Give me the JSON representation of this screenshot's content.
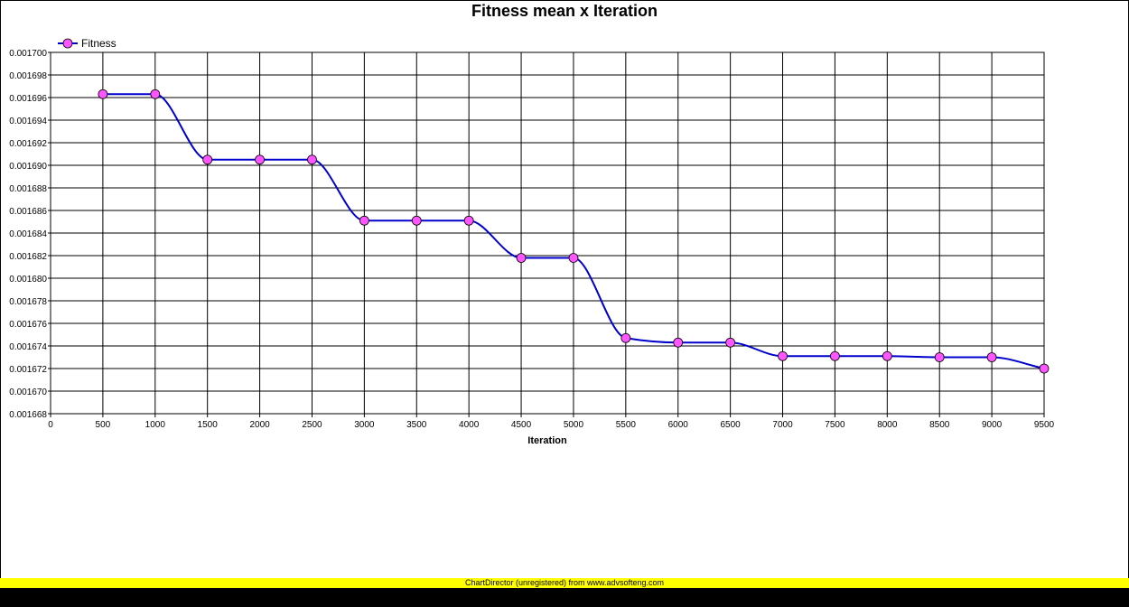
{
  "chart_data": {
    "type": "line",
    "title": "Fitness mean x Iteration",
    "xlabel": "Iteration",
    "ylabel": "",
    "xlim": [
      0,
      9500
    ],
    "ylim": [
      0.001668,
      0.0017
    ],
    "x_ticks": [
      "0",
      "500",
      "1000",
      "1500",
      "2000",
      "2500",
      "3000",
      "3500",
      "4000",
      "4500",
      "5000",
      "5500",
      "6000",
      "6500",
      "7000",
      "7500",
      "8000",
      "8500",
      "9000",
      "9500"
    ],
    "y_ticks": [
      "0.001668",
      "0.001670",
      "0.001672",
      "0.001674",
      "0.001676",
      "0.001678",
      "0.001680",
      "0.001682",
      "0.001684",
      "0.001686",
      "0.001688",
      "0.001690",
      "0.001692",
      "0.001694",
      "0.001696",
      "0.001698",
      "0.001700"
    ],
    "grid": true,
    "legend_position": "top-left",
    "series": [
      {
        "name": "Fitness",
        "line_color": "#0000cc",
        "marker_color": "#ff55ff",
        "x": [
          500,
          1000,
          1500,
          2000,
          2500,
          3000,
          3500,
          4000,
          4500,
          5000,
          5500,
          6000,
          6500,
          7000,
          7500,
          8000,
          8500,
          9000,
          9500
        ],
        "values": [
          0.0016963,
          0.0016963,
          0.0016905,
          0.0016905,
          0.0016905,
          0.0016851,
          0.0016851,
          0.0016851,
          0.0016818,
          0.0016818,
          0.0016747,
          0.0016743,
          0.0016743,
          0.0016731,
          0.0016731,
          0.0016731,
          0.001673,
          0.001673,
          0.001672
        ]
      }
    ]
  },
  "footer": {
    "watermark": "ChartDirector (unregistered) from www.advsofteng.com"
  }
}
